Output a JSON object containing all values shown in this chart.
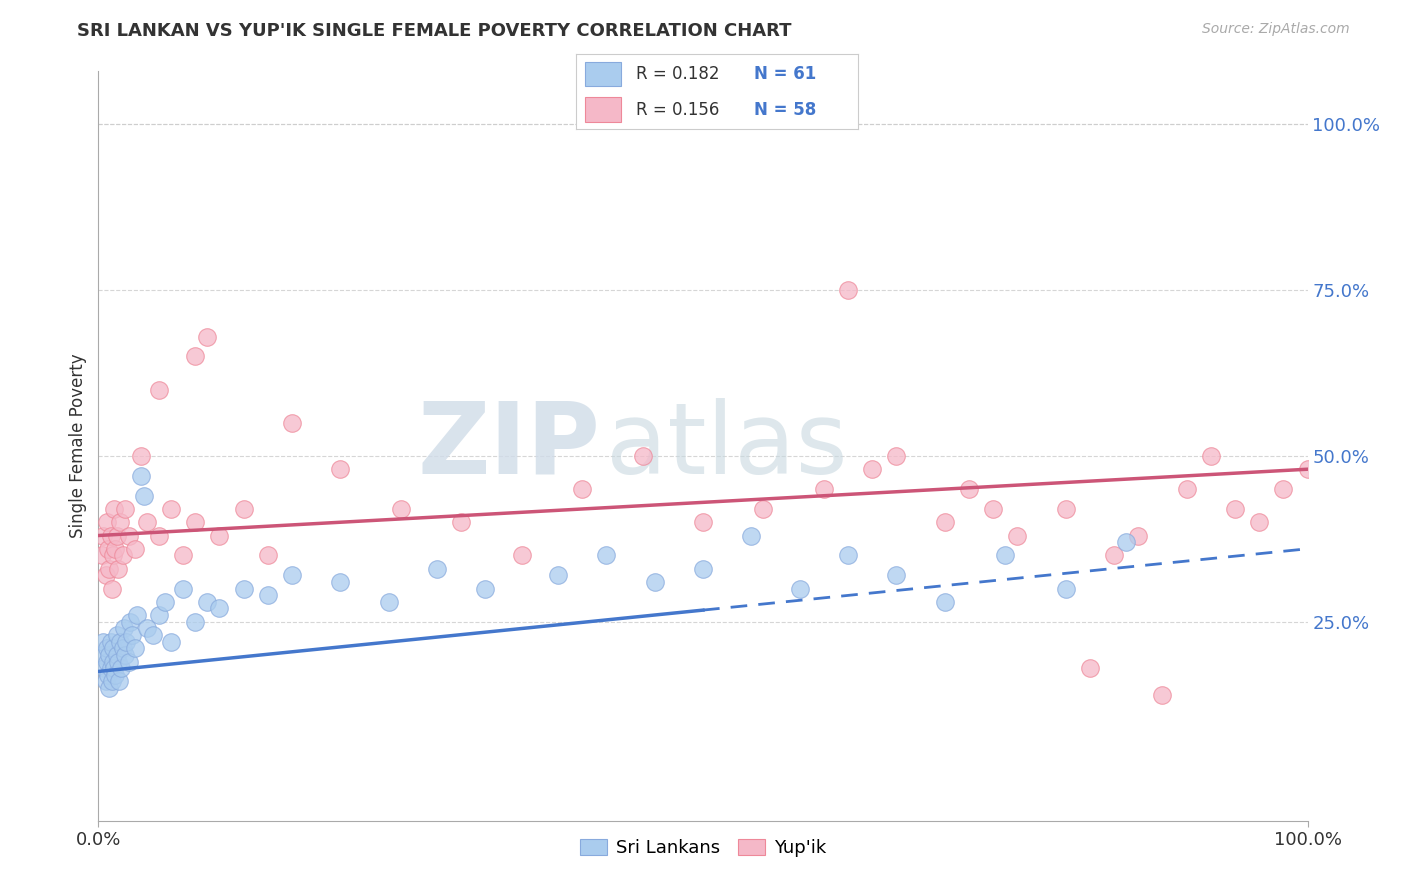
{
  "title": "SRI LANKAN VS YUP'IK SINGLE FEMALE POVERTY CORRELATION CHART",
  "source_text": "Source: ZipAtlas.com",
  "ylabel": "Single Female Poverty",
  "xlim": [
    0.0,
    1.0
  ],
  "ylim": [
    -0.05,
    1.08
  ],
  "x_tick_labels": [
    "0.0%",
    "100.0%"
  ],
  "x_tick_positions": [
    0.0,
    1.0
  ],
  "y_tick_labels": [
    "25.0%",
    "50.0%",
    "75.0%",
    "100.0%"
  ],
  "y_tick_positions": [
    0.25,
    0.5,
    0.75,
    1.0
  ],
  "background_color": "#ffffff",
  "grid_color": "#cccccc",
  "sri_lankan_color": "#aaccee",
  "yupik_color": "#f5b8c8",
  "sri_lankan_edge": "#88aadd",
  "yupik_edge": "#ee8899",
  "trend_blue_color": "#4477cc",
  "trend_pink_color": "#cc5577",
  "legend_r_color": "#333333",
  "legend_n_color": "#4477cc",
  "legend_r_blue": "0.182",
  "legend_n_blue": "61",
  "legend_r_pink": "0.156",
  "legend_n_pink": "58",
  "watermark_zip": "ZIP",
  "watermark_atlas": "atlas",
  "sri_lankans_x": [
    0.003,
    0.004,
    0.005,
    0.006,
    0.007,
    0.007,
    0.008,
    0.009,
    0.009,
    0.01,
    0.01,
    0.011,
    0.012,
    0.012,
    0.013,
    0.014,
    0.015,
    0.015,
    0.016,
    0.017,
    0.018,
    0.019,
    0.02,
    0.021,
    0.022,
    0.023,
    0.025,
    0.026,
    0.028,
    0.03,
    0.032,
    0.035,
    0.038,
    0.04,
    0.045,
    0.05,
    0.055,
    0.06,
    0.07,
    0.08,
    0.09,
    0.1,
    0.12,
    0.14,
    0.16,
    0.2,
    0.24,
    0.28,
    0.32,
    0.38,
    0.42,
    0.46,
    0.5,
    0.54,
    0.58,
    0.62,
    0.66,
    0.7,
    0.75,
    0.8,
    0.85
  ],
  "sri_lankans_y": [
    0.2,
    0.22,
    0.18,
    0.16,
    0.19,
    0.21,
    0.17,
    0.2,
    0.15,
    0.18,
    0.22,
    0.16,
    0.19,
    0.21,
    0.18,
    0.17,
    0.2,
    0.23,
    0.19,
    0.16,
    0.22,
    0.18,
    0.21,
    0.24,
    0.2,
    0.22,
    0.19,
    0.25,
    0.23,
    0.21,
    0.26,
    0.47,
    0.44,
    0.24,
    0.23,
    0.26,
    0.28,
    0.22,
    0.3,
    0.25,
    0.28,
    0.27,
    0.3,
    0.29,
    0.32,
    0.31,
    0.28,
    0.33,
    0.3,
    0.32,
    0.35,
    0.31,
    0.33,
    0.38,
    0.3,
    0.35,
    0.32,
    0.28,
    0.35,
    0.3,
    0.37
  ],
  "yupik_x": [
    0.003,
    0.004,
    0.006,
    0.007,
    0.008,
    0.009,
    0.01,
    0.011,
    0.012,
    0.013,
    0.014,
    0.015,
    0.016,
    0.018,
    0.02,
    0.022,
    0.025,
    0.03,
    0.04,
    0.05,
    0.06,
    0.07,
    0.08,
    0.1,
    0.12,
    0.14,
    0.16,
    0.2,
    0.25,
    0.3,
    0.35,
    0.4,
    0.45,
    0.5,
    0.55,
    0.6,
    0.62,
    0.64,
    0.66,
    0.7,
    0.72,
    0.74,
    0.76,
    0.8,
    0.82,
    0.84,
    0.86,
    0.88,
    0.9,
    0.92,
    0.94,
    0.96,
    0.98,
    1.0,
    0.05,
    0.08,
    0.035,
    0.09
  ],
  "yupik_y": [
    0.35,
    0.38,
    0.32,
    0.4,
    0.36,
    0.33,
    0.38,
    0.3,
    0.35,
    0.42,
    0.36,
    0.38,
    0.33,
    0.4,
    0.35,
    0.42,
    0.38,
    0.36,
    0.4,
    0.38,
    0.42,
    0.35,
    0.4,
    0.38,
    0.42,
    0.35,
    0.55,
    0.48,
    0.42,
    0.4,
    0.35,
    0.45,
    0.5,
    0.4,
    0.42,
    0.45,
    0.75,
    0.48,
    0.5,
    0.4,
    0.45,
    0.42,
    0.38,
    0.42,
    0.18,
    0.35,
    0.38,
    0.14,
    0.45,
    0.5,
    0.42,
    0.4,
    0.45,
    0.48,
    0.6,
    0.65,
    0.5,
    0.68
  ],
  "sri_solid_xend": 0.5,
  "pink_intercept": 0.38,
  "pink_slope": 0.1,
  "blue_intercept": 0.175,
  "blue_slope": 0.185
}
